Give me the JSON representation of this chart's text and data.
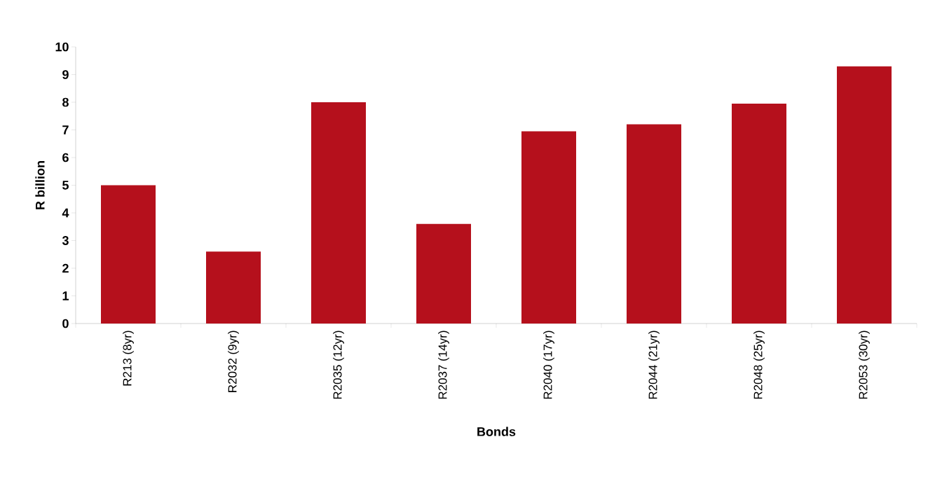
{
  "chart_data": {
    "type": "bar",
    "xlabel": "Bonds",
    "ylabel": "R billion",
    "categories": [
      "R213 (8yr)",
      "R2032 (9yr)",
      "R2035 (12yr)",
      "R2037 (14yr)",
      "R2040 (17yr)",
      "R2044 (21yr)",
      "R2048 (25yr)",
      "R2053 (30yr)"
    ],
    "values": [
      5.0,
      2.6,
      8.0,
      3.6,
      6.95,
      7.2,
      7.95,
      9.3
    ],
    "color": "#b5101c",
    "ylim": [
      0,
      10
    ],
    "yticks": [
      0,
      1,
      2,
      3,
      4,
      5,
      6,
      7,
      8,
      9,
      10
    ],
    "grid": false
  }
}
